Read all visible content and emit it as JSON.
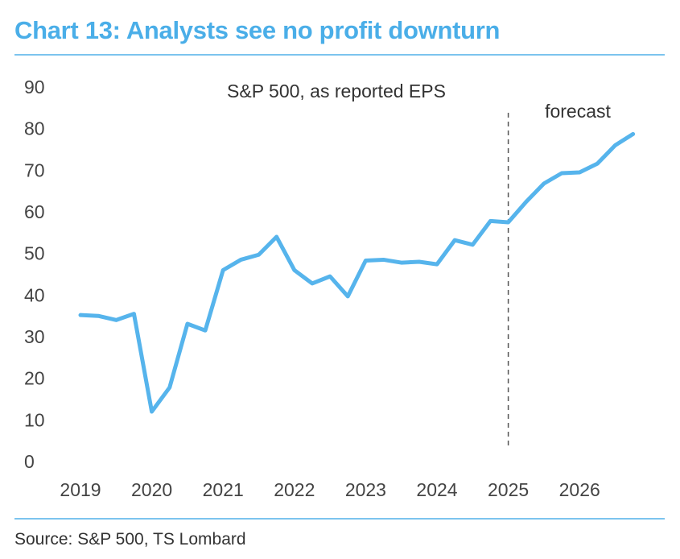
{
  "chart_data": {
    "type": "line",
    "title": "Chart 13: Analysts see no profit downturn",
    "subtitle": "S&P 500, as reported EPS",
    "source": "Source: S&P 500, TS Lombard",
    "forecast_label": "forecast",
    "forecast_start": 2025.0,
    "ylim": [
      0,
      90
    ],
    "yticks": [
      0,
      10,
      20,
      30,
      40,
      50,
      60,
      70,
      80,
      90
    ],
    "xticks": [
      2019,
      2020,
      2021,
      2022,
      2023,
      2024,
      2025,
      2026
    ],
    "xlim": [
      2019,
      2026.75
    ],
    "grid": false,
    "color": "#56b4ec",
    "series": [
      {
        "name": "S&P 500 as reported EPS",
        "x": [
          2019.0,
          2019.25,
          2019.5,
          2019.75,
          2020.0,
          2020.25,
          2020.5,
          2020.75,
          2021.0,
          2021.25,
          2021.5,
          2021.75,
          2022.0,
          2022.25,
          2022.5,
          2022.75,
          2023.0,
          2023.25,
          2023.5,
          2023.75,
          2024.0,
          2024.25,
          2024.5,
          2024.75,
          2025.0,
          2025.25,
          2025.5,
          2025.75,
          2026.0,
          2026.25,
          2026.5,
          2026.75
        ],
        "values": [
          35.0,
          34.8,
          33.8,
          35.3,
          11.8,
          17.6,
          32.9,
          31.3,
          45.8,
          48.3,
          49.5,
          53.8,
          45.8,
          42.6,
          44.3,
          39.5,
          48.1,
          48.3,
          47.6,
          47.8,
          47.2,
          53.0,
          51.9,
          57.6,
          57.3,
          62.2,
          66.6,
          69.1,
          69.3,
          71.4,
          75.8,
          78.5
        ]
      }
    ]
  }
}
